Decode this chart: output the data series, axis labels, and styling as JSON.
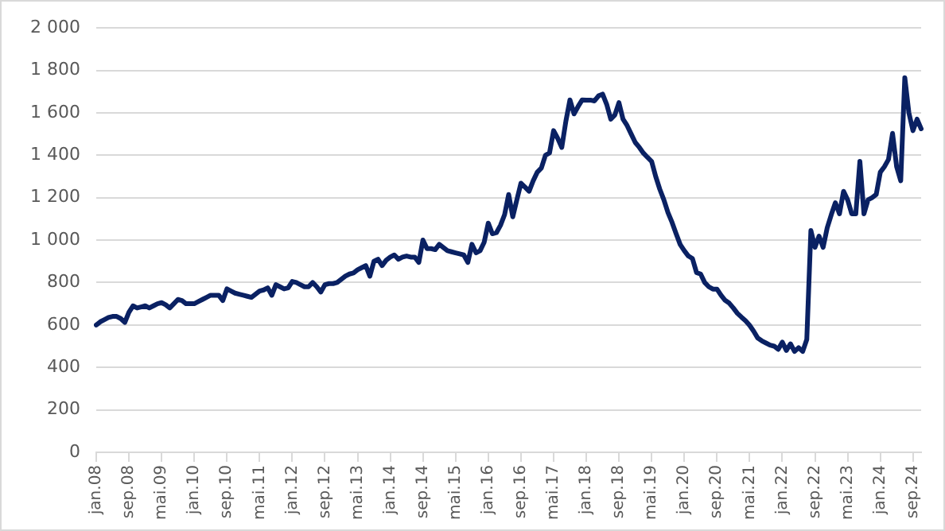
{
  "chart_data": {
    "type": "line",
    "categories": [
      "jan.08",
      null,
      null,
      null,
      null,
      null,
      null,
      null,
      "sep.08",
      null,
      null,
      null,
      null,
      null,
      null,
      null,
      "mai.09",
      null,
      null,
      null,
      null,
      null,
      null,
      null,
      "jan.10",
      null,
      null,
      null,
      null,
      null,
      null,
      null,
      "sep.10",
      null,
      null,
      null,
      null,
      null,
      null,
      null,
      "mai.11",
      null,
      null,
      null,
      null,
      null,
      null,
      null,
      "jan.12",
      null,
      null,
      null,
      null,
      null,
      null,
      null,
      "sep.12",
      null,
      null,
      null,
      null,
      null,
      null,
      null,
      "mai.13",
      null,
      null,
      null,
      null,
      null,
      null,
      null,
      "jan.14",
      null,
      null,
      null,
      null,
      null,
      null,
      null,
      "sep.14",
      null,
      null,
      null,
      null,
      null,
      null,
      null,
      "mai.15",
      null,
      null,
      null,
      null,
      null,
      null,
      null,
      "jan.16",
      null,
      null,
      null,
      null,
      null,
      null,
      null,
      "sep.16",
      null,
      null,
      null,
      null,
      null,
      null,
      null,
      "mai.17",
      null,
      null,
      null,
      null,
      null,
      null,
      null,
      "jan.18",
      null,
      null,
      null,
      null,
      null,
      null,
      null,
      "sep.18",
      null,
      null,
      null,
      null,
      null,
      null,
      null,
      "mai.19",
      null,
      null,
      null,
      null,
      null,
      null,
      null,
      "jan.20",
      null,
      null,
      null,
      null,
      null,
      null,
      null,
      "sep.20",
      null,
      null,
      null,
      null,
      null,
      null,
      null,
      "mai.21",
      null,
      null,
      null,
      null,
      null,
      null,
      null,
      "jan.22",
      null,
      null,
      null,
      null,
      null,
      null,
      null,
      "sep.22",
      null,
      null,
      null,
      null,
      null,
      null,
      null,
      "mai.23",
      null,
      null,
      null,
      null,
      null,
      null,
      null,
      "jan.24",
      null,
      null,
      null,
      null,
      null,
      null,
      null,
      "sep.24",
      null,
      null
    ],
    "series": [
      {
        "color": "#0a2163",
        "values": [
          600,
          615,
          625,
          635,
          640,
          640,
          630,
          612,
          660,
          690,
          680,
          685,
          690,
          680,
          690,
          700,
          705,
          695,
          680,
          700,
          720,
          715,
          700,
          700,
          700,
          710,
          720,
          730,
          740,
          740,
          740,
          715,
          770,
          760,
          750,
          745,
          740,
          735,
          730,
          745,
          760,
          765,
          775,
          740,
          790,
          780,
          770,
          775,
          805,
          800,
          790,
          780,
          780,
          800,
          780,
          755,
          790,
          795,
          795,
          800,
          815,
          830,
          840,
          845,
          860,
          870,
          880,
          830,
          900,
          910,
          880,
          905,
          920,
          930,
          910,
          920,
          925,
          920,
          920,
          895,
          1000,
          960,
          960,
          955,
          980,
          965,
          950,
          945,
          940,
          935,
          930,
          895,
          980,
          940,
          950,
          990,
          1080,
          1030,
          1035,
          1070,
          1120,
          1215,
          1110,
          1190,
          1268,
          1250,
          1230,
          1280,
          1320,
          1340,
          1400,
          1411,
          1516,
          1480,
          1437,
          1560,
          1661,
          1595,
          1630,
          1661,
          1660,
          1660,
          1656,
          1680,
          1688,
          1640,
          1570,
          1590,
          1648,
          1570,
          1540,
          1500,
          1460,
          1437,
          1410,
          1390,
          1371,
          1300,
          1240,
          1190,
          1130,
          1084,
          1030,
          979,
          950,
          925,
          913,
          847,
          840,
          800,
          780,
          769,
          769,
          740,
          716,
          703,
          680,
          655,
          637,
          620,
          598,
          570,
          538,
          525,
          515,
          505,
          500,
          485,
          519,
          480,
          511,
          475,
          493,
          475,
          532,
          1045,
          966,
          1019,
          966,
          1058,
          1120,
          1176,
          1124,
          1230,
          1190,
          1124,
          1124,
          1371,
          1124,
          1190,
          1200,
          1215,
          1320,
          1346,
          1380,
          1503,
          1346,
          1280,
          1766,
          1600,
          1516,
          1570,
          1525
        ]
      }
    ],
    "ylim": [
      0,
      2000
    ],
    "yticks": [
      0,
      200,
      400,
      600,
      800,
      {
        "value": 1000,
        "label": "1 000"
      },
      {
        "value": 1200,
        "label": "1 200"
      },
      {
        "value": 1400,
        "label": "1 400"
      },
      {
        "value": 1600,
        "label": "1 600"
      },
      {
        "value": 1800,
        "label": "1 800"
      },
      {
        "value": 2000,
        "label": "2 000"
      }
    ],
    "grid": "y",
    "legend": false,
    "marker": "none",
    "line_style": "solid"
  }
}
